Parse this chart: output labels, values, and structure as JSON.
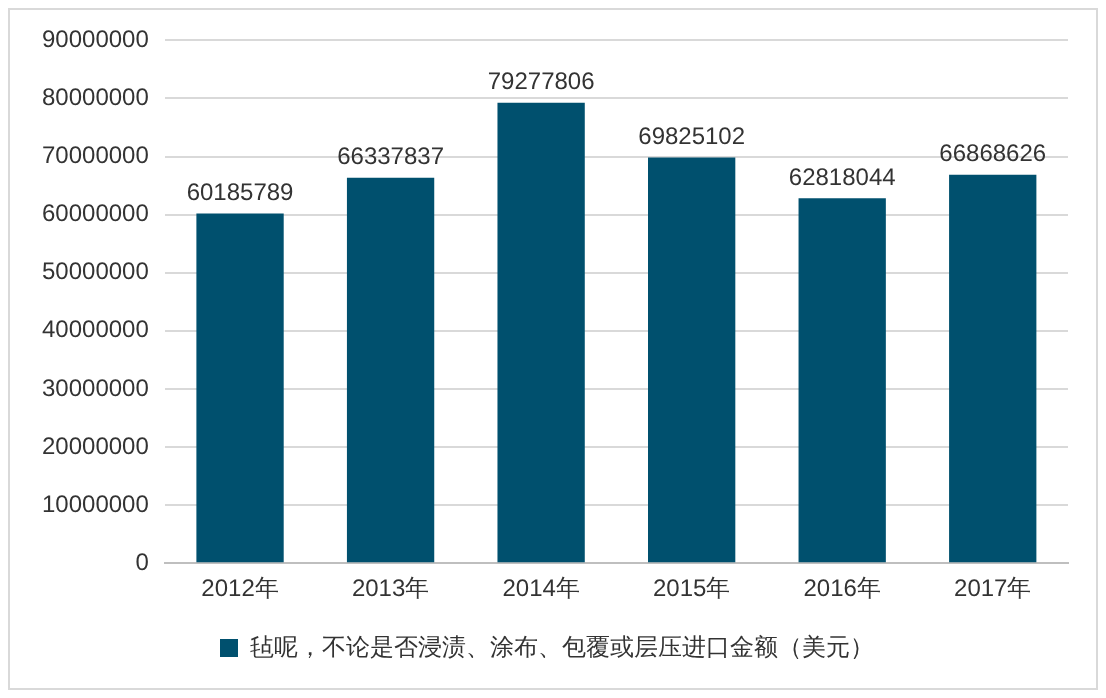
{
  "chart_data": {
    "type": "bar",
    "categories": [
      "2012年",
      "2013年",
      "2014年",
      "2015年",
      "2016年",
      "2017年"
    ],
    "series": [
      {
        "name": "毡呢，不论是否浸渍、涂布、包覆或层压进口金额（美元）",
        "color": "#00506e",
        "values": [
          60185789,
          66337837,
          79277806,
          69825102,
          62818044,
          66868626
        ]
      }
    ],
    "ylim": [
      0,
      90000000
    ],
    "yticks": [
      0,
      10000000,
      20000000,
      30000000,
      40000000,
      50000000,
      60000000,
      70000000,
      80000000,
      90000000
    ],
    "grid": "y",
    "legend": "bottom",
    "data_labels": true
  }
}
